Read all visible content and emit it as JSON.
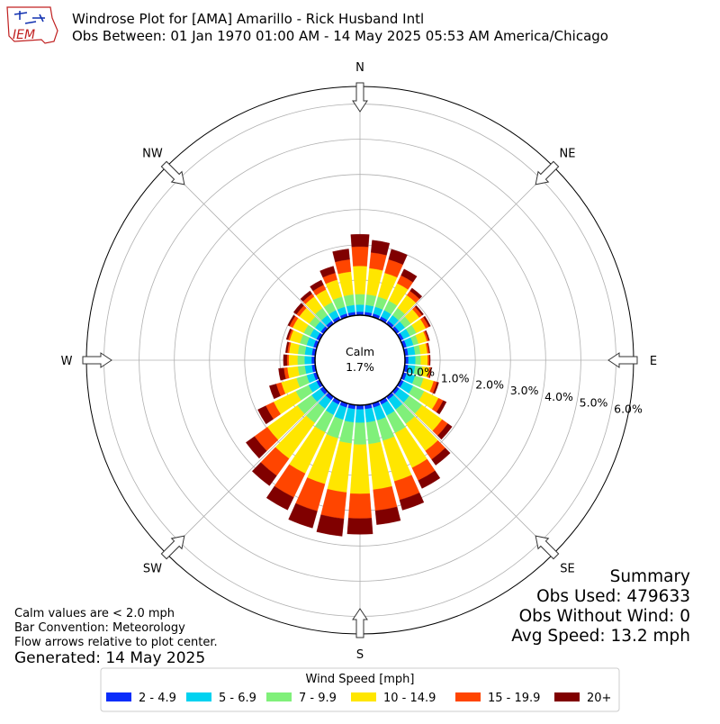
{
  "header": {
    "logo_text": "IEM",
    "title": "Windrose Plot for [AMA] Amarillo - Rick Husband Intl",
    "subtitle": "Obs Between: 01 Jan 1970 01:00 AM - 14 May 2025 05:53 AM America/Chicago"
  },
  "calm": {
    "label": "Calm",
    "value": "1.7%"
  },
  "notes": {
    "line1": "Calm values are < 2.0 mph",
    "line2": "Bar Convention: Meteorology",
    "line3": "Flow arrows relative to plot center.",
    "generated": "Generated: 14 May 2025"
  },
  "summary": {
    "title": "Summary",
    "obs_used": "Obs Used: 479633",
    "obs_without_wind": "Obs Without Wind: 0",
    "avg_speed": "Avg Speed: 13.2 mph"
  },
  "legend": {
    "title": "Wind Speed [mph]",
    "placement": "bottom-center"
  },
  "chart_data": {
    "type": "windrose",
    "units": "percent of observations",
    "radial_ticks": [
      "0.0%",
      "1.0%",
      "2.0%",
      "3.0%",
      "4.0%",
      "5.0%",
      "6.0%"
    ],
    "radial_range": [
      0,
      6.5
    ],
    "grid": true,
    "compass_labels": [
      {
        "label": "N",
        "deg": 0
      },
      {
        "label": "NE",
        "deg": 45
      },
      {
        "label": "E",
        "deg": 90
      },
      {
        "label": "SE",
        "deg": 135
      },
      {
        "label": "S",
        "deg": 180
      },
      {
        "label": "SW",
        "deg": 225
      },
      {
        "label": "W",
        "deg": 270
      },
      {
        "label": "NW",
        "deg": 315
      }
    ],
    "directions_deg": [
      0,
      10,
      20,
      30,
      40,
      50,
      60,
      70,
      80,
      90,
      100,
      110,
      120,
      130,
      140,
      150,
      160,
      170,
      180,
      190,
      200,
      210,
      220,
      230,
      240,
      250,
      260,
      270,
      280,
      290,
      300,
      310,
      320,
      330,
      340,
      350
    ],
    "series": [
      {
        "name": "2 - 4.9",
        "color": "#0a2dfa",
        "values": [
          0.1,
          0.1,
          0.1,
          0.1,
          0.1,
          0.1,
          0.1,
          0.1,
          0.1,
          0.1,
          0.1,
          0.1,
          0.1,
          0.1,
          0.1,
          0.12,
          0.12,
          0.12,
          0.12,
          0.12,
          0.12,
          0.12,
          0.12,
          0.12,
          0.1,
          0.1,
          0.1,
          0.1,
          0.1,
          0.1,
          0.1,
          0.1,
          0.1,
          0.1,
          0.1,
          0.1
        ]
      },
      {
        "name": "5 - 6.9",
        "color": "#00d2f0",
        "values": [
          0.2,
          0.2,
          0.2,
          0.2,
          0.2,
          0.2,
          0.2,
          0.2,
          0.2,
          0.2,
          0.2,
          0.25,
          0.3,
          0.35,
          0.35,
          0.35,
          0.38,
          0.38,
          0.38,
          0.38,
          0.36,
          0.33,
          0.3,
          0.3,
          0.25,
          0.2,
          0.2,
          0.2,
          0.2,
          0.2,
          0.2,
          0.2,
          0.2,
          0.2,
          0.2,
          0.2
        ]
      },
      {
        "name": "7 - 9.9",
        "color": "#80f07a",
        "values": [
          0.3,
          0.3,
          0.3,
          0.3,
          0.25,
          0.2,
          0.2,
          0.15,
          0.15,
          0.15,
          0.2,
          0.25,
          0.35,
          0.45,
          0.5,
          0.55,
          0.6,
          0.62,
          0.62,
          0.6,
          0.55,
          0.55,
          0.5,
          0.5,
          0.4,
          0.3,
          0.2,
          0.2,
          0.2,
          0.2,
          0.2,
          0.2,
          0.25,
          0.25,
          0.3,
          0.3
        ]
      },
      {
        "name": "10 - 14.9",
        "color": "#ffe600",
        "values": [
          0.8,
          0.75,
          0.7,
          0.55,
          0.45,
          0.3,
          0.3,
          0.25,
          0.2,
          0.2,
          0.2,
          0.3,
          0.45,
          0.7,
          0.95,
          1.1,
          1.2,
          1.3,
          1.4,
          1.4,
          1.35,
          1.3,
          1.25,
          1.05,
          0.7,
          0.45,
          0.3,
          0.25,
          0.25,
          0.3,
          0.35,
          0.35,
          0.4,
          0.4,
          0.5,
          0.65
        ]
      },
      {
        "name": "15 - 19.9",
        "color": "#ff4500",
        "values": [
          0.55,
          0.45,
          0.4,
          0.25,
          0.15,
          0.1,
          0.1,
          0.05,
          0.05,
          0.05,
          0.05,
          0.1,
          0.15,
          0.2,
          0.3,
          0.4,
          0.55,
          0.6,
          0.7,
          0.75,
          0.8,
          0.75,
          0.6,
          0.45,
          0.25,
          0.15,
          0.1,
          0.05,
          0.05,
          0.05,
          0.1,
          0.1,
          0.1,
          0.15,
          0.2,
          0.35
        ]
      },
      {
        "name": "20+",
        "color": "#800000",
        "values": [
          0.35,
          0.35,
          0.3,
          0.2,
          0.1,
          0.05,
          0.05,
          0.03,
          0.02,
          0.02,
          0.02,
          0.05,
          0.1,
          0.15,
          0.2,
          0.25,
          0.3,
          0.4,
          0.45,
          0.5,
          0.5,
          0.4,
          0.35,
          0.3,
          0.25,
          0.2,
          0.15,
          0.1,
          0.05,
          0.05,
          0.05,
          0.1,
          0.1,
          0.15,
          0.2,
          0.3
        ]
      }
    ]
  }
}
